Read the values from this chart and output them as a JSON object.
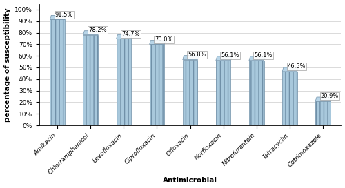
{
  "categories": [
    "Amikacin",
    "Chlorramphenicol",
    "Levofloxacin",
    "Ciprofloxacin",
    "Ofloxacin",
    "Norfloxacin",
    "Nitrofurantoin",
    "Tetracyclin",
    "Cotrimoxazole"
  ],
  "values": [
    91.5,
    78.2,
    74.7,
    70.0,
    56.8,
    56.1,
    56.1,
    46.5,
    20.9
  ],
  "labels": [
    "91.5%",
    "78.2%",
    "74.7%",
    "70.0%",
    "56.8%",
    "56.1%",
    "56.1%",
    "46.5%",
    "20.9%"
  ],
  "bar_color_main": "#A8C8DC",
  "bar_color_left": "#C8DDE8",
  "bar_color_right": "#7AAABB",
  "bar_color_top": "#B8D5E8",
  "bar_edge_color": "#7090A8",
  "ylabel": "percentage of susceptibility",
  "xlabel": "Antimicrobial",
  "ylim": [
    0,
    100
  ],
  "yticks": [
    0,
    10,
    20,
    30,
    40,
    50,
    60,
    70,
    80,
    90,
    100
  ],
  "ytick_labels": [
    "0%",
    "10%",
    "20%",
    "30%",
    "40%",
    "50%",
    "60%",
    "70%",
    "80%",
    "90%",
    "100%"
  ],
  "background_color": "#ffffff",
  "grid_color": "#cccccc",
  "label_fontsize": 6.0,
  "axis_label_fontsize": 7.5,
  "tick_fontsize": 6.5,
  "bar_width": 0.45
}
